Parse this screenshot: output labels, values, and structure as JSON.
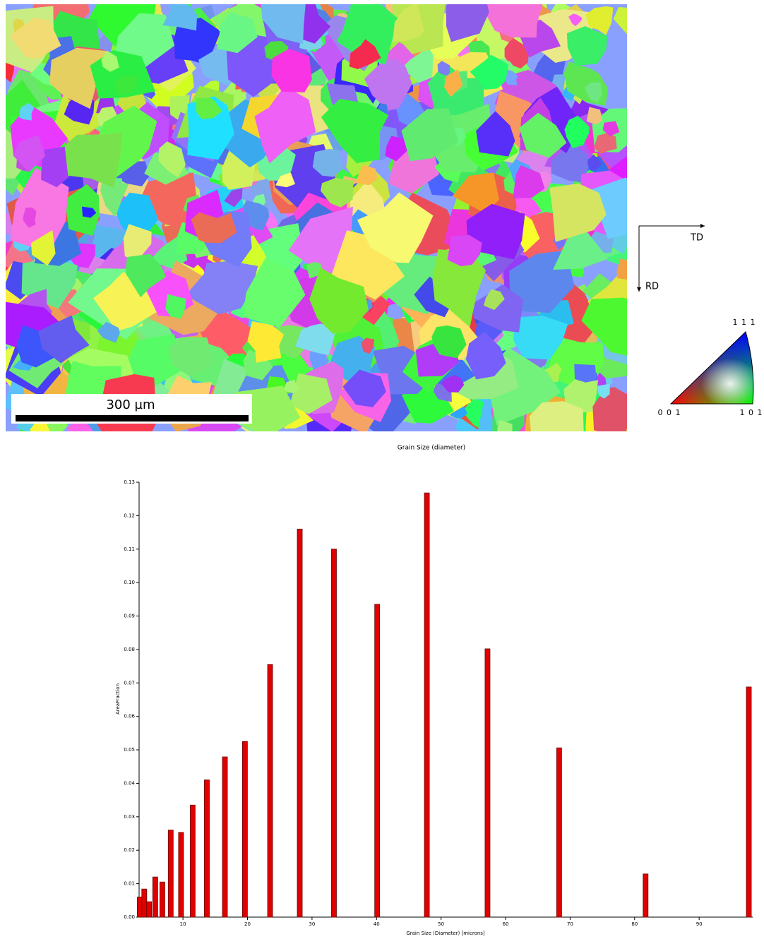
{
  "ebsd_map": {
    "scale_bar": "300 µm",
    "directions": {
      "horizontal": "TD",
      "vertical": "RD"
    },
    "ipf_triangle": {
      "top": "1 1 1",
      "left": "0 0 1",
      "right": "1 0 1"
    }
  },
  "chart_data": {
    "type": "bar",
    "title": "Grain Size (diameter)",
    "x_label": "Grain Size (Diameter) [microns]",
    "y_label": "AreaFraction",
    "x": [
      3.3,
      4.0,
      4.75,
      5.7,
      6.8,
      8.1,
      9.7,
      11.5,
      13.7,
      16.5,
      19.6,
      23.5,
      28.1,
      33.4,
      40.1,
      47.8,
      57.2,
      68.3,
      81.7,
      97.7
    ],
    "values": [
      0.006,
      0.0084,
      0.0046,
      0.012,
      0.0105,
      0.026,
      0.0253,
      0.0335,
      0.041,
      0.0479,
      0.0525,
      0.0755,
      0.116,
      0.11,
      0.0935,
      0.1268,
      0.0802,
      0.0506,
      0.0129,
      0.0688
    ],
    "color": "#e00000",
    "xlim": [
      3.2,
      98.3
    ],
    "xticks": [
      10,
      20,
      30,
      40,
      50,
      60,
      70,
      80,
      90
    ],
    "ylim": [
      0,
      0.13
    ],
    "yticks": [
      {
        "value": 0,
        "label": "0.00"
      },
      {
        "value": 0.01,
        "label": "0.01"
      },
      {
        "value": 0.02,
        "label": "0.02"
      },
      {
        "value": 0.03,
        "label": "0.03"
      },
      {
        "value": 0.04,
        "label": "0.04"
      },
      {
        "value": 0.05,
        "label": "0.05"
      },
      {
        "value": 0.06,
        "label": "0.06"
      },
      {
        "value": 0.07,
        "label": "0.07"
      },
      {
        "value": 0.08,
        "label": "0.08"
      },
      {
        "value": 0.09,
        "label": "0.09"
      },
      {
        "value": 0.1,
        "label": "0.10"
      },
      {
        "value": 0.11,
        "label": "0.11"
      },
      {
        "value": 0.12,
        "label": "0.12"
      },
      {
        "value": 0.13,
        "label": "0.13"
      }
    ]
  }
}
